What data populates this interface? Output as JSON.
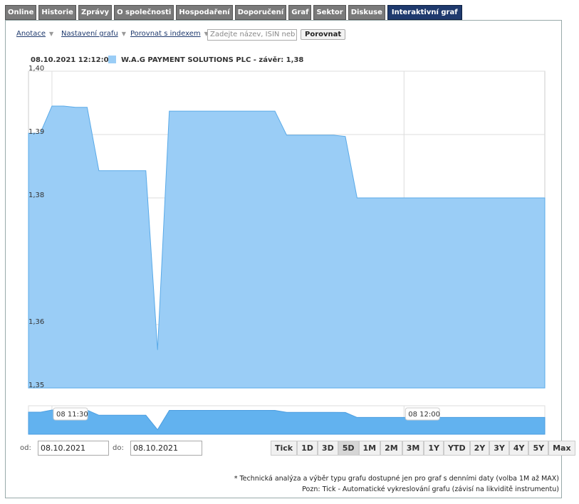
{
  "tabs": [
    "Online",
    "Historie",
    "Zprávy",
    "O společnosti",
    "Hospodaření",
    "Doporučení",
    "Graf",
    "Sektor",
    "Diskuse",
    "Interaktivní graf"
  ],
  "toolbar": {
    "annotations": "Anotace",
    "chart_settings": "Nastavení grafu",
    "compare_index": "Porovnat s indexem",
    "search_placeholder": "Zadejte název, ISIN neb",
    "compare_button": "Porovnat"
  },
  "chart_data": {
    "type": "area",
    "timestamp": "08.10.2021 12:12:00",
    "x": [
      "08 11:28",
      "08 11:29",
      "08 11:30",
      "08 11:31",
      "08 11:32",
      "08 11:33",
      "08 11:34",
      "08 11:38",
      "08 11:39",
      "08 11:40",
      "08 11:49",
      "08 11:50",
      "08 11:54",
      "08 11:55",
      "08 11:56",
      "08 12:12"
    ],
    "series": [
      {
        "name": "W.A.G PAYMENT SOLUTIONS PLC - závěr: 1,38",
        "color": "#9acdf6",
        "values": [
          1.3902,
          1.3902,
          1.3945,
          1.3945,
          1.3943,
          1.3943,
          1.3843,
          1.3843,
          1.356,
          1.3937,
          1.3937,
          1.3899,
          1.3899,
          1.3897,
          1.38,
          1.38
        ]
      }
    ],
    "xlim": [
      "08 11:28",
      "08 12:12"
    ],
    "xticks": [
      "08 11:30",
      "08 12:00"
    ],
    "ylim": [
      1.35,
      1.4
    ],
    "yticks": [
      {
        "value": 1.4,
        "label": "1,40"
      },
      {
        "value": 1.39,
        "label": "1,39"
      },
      {
        "value": 1.38,
        "label": "1,38"
      },
      {
        "value": 1.36,
        "label": "1,36"
      },
      {
        "value": 1.35,
        "label": "1,35"
      }
    ],
    "grid": true
  },
  "range": {
    "from_label": "od:",
    "from_date": "08.10.2021",
    "to_label": "do:",
    "to_date": "08.10.2021",
    "buttons": [
      "Tick",
      "1D",
      "3D",
      "5D",
      "1M",
      "2M",
      "3M",
      "1Y",
      "YTD",
      "2Y",
      "3Y",
      "4Y",
      "5Y",
      "Max"
    ]
  },
  "notes": [
    "* Technická analýza a výběr typu grafu dostupné jen pro graf s denními daty (volba 1M až MAX)",
    "Pozn: Tick - Automatické vykreslování grafu (závisí na likviditě instrumentu)"
  ]
}
